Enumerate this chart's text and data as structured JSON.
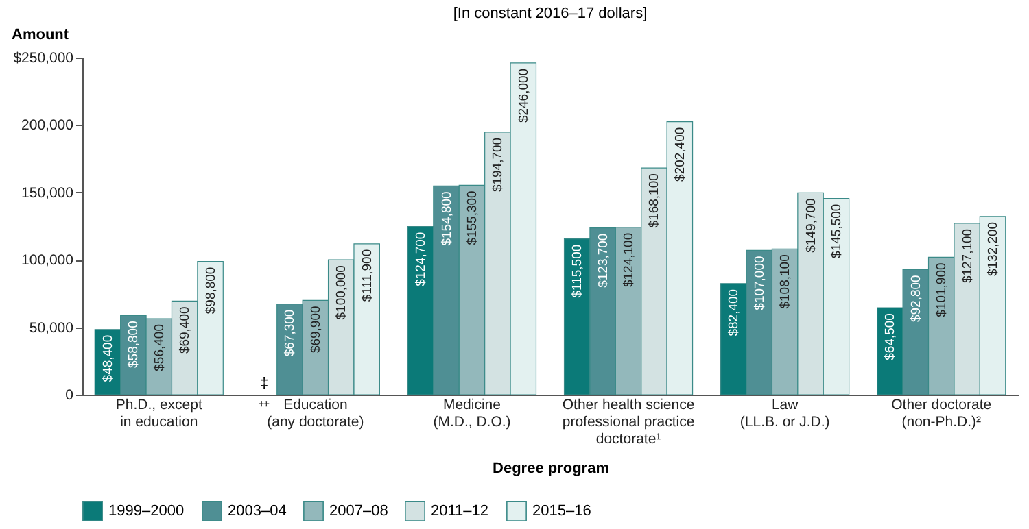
{
  "chart_data": {
    "type": "bar",
    "subtitle": "[In constant 2016–17 dollars]",
    "xlabel": "Degree program",
    "ylabel": "Amount",
    "categories": [
      "Ph.D., except\nin education",
      "Education\n(any doctorate)",
      "Medicine\n(M.D., D.O.)",
      "Other health science\nprofessional practice\ndoctorate¹",
      "Law\n(LL.B. or J.D.)",
      "Other doctorate\n(non-Ph.D.)²"
    ],
    "series": [
      {
        "name": "1999–2000",
        "color": "#0b7a78",
        "values": [
          48400,
          null,
          124700,
          115500,
          82400,
          64500
        ],
        "value_labels": [
          "$48,400",
          "‡",
          "$124,700",
          "$115,500",
          "$82,400",
          "$64,500"
        ]
      },
      {
        "name": "2003–04",
        "color": "#4f8f94",
        "values": [
          58800,
          67300,
          154800,
          123700,
          107000,
          92800
        ],
        "value_labels": [
          "$58,800",
          "$67,300",
          "$154,800",
          "$123,700",
          "$107,000",
          "$92,800"
        ]
      },
      {
        "name": "2007–08",
        "color": "#93b8bb",
        "values": [
          56400,
          69900,
          155300,
          124100,
          108100,
          101900
        ],
        "value_labels": [
          "$56,400",
          "$69,900",
          "$155,300",
          "$124,100",
          "$108,100",
          "$101,900"
        ]
      },
      {
        "name": "2011–12",
        "color": "#d3e2e2",
        "values": [
          69400,
          100000,
          194700,
          168100,
          149700,
          127100
        ],
        "value_labels": [
          "$69,400",
          "$100,000",
          "$194,700",
          "$168,100",
          "$149,700",
          "$127,100"
        ]
      },
      {
        "name": "2015–16",
        "color": "#e3f1f0",
        "values": [
          98800,
          111900,
          246000,
          202400,
          145500,
          132200
        ],
        "value_labels": [
          "$98,800",
          "$111,900",
          "$246,000",
          "$202,400",
          "$145,500",
          "$132,200"
        ]
      }
    ],
    "ylim": [
      0,
      250000
    ],
    "yticks": [
      0,
      {
        "value": 50000,
        "label": "50,000"
      },
      {
        "value": 100000,
        "label": "100,000"
      },
      {
        "value": 150000,
        "label": "150,000"
      },
      {
        "value": 200000,
        "label": "200,000"
      },
      {
        "value": 250000,
        "label": "$250,000"
      }
    ],
    "grid": false,
    "legend": "bottom"
  }
}
